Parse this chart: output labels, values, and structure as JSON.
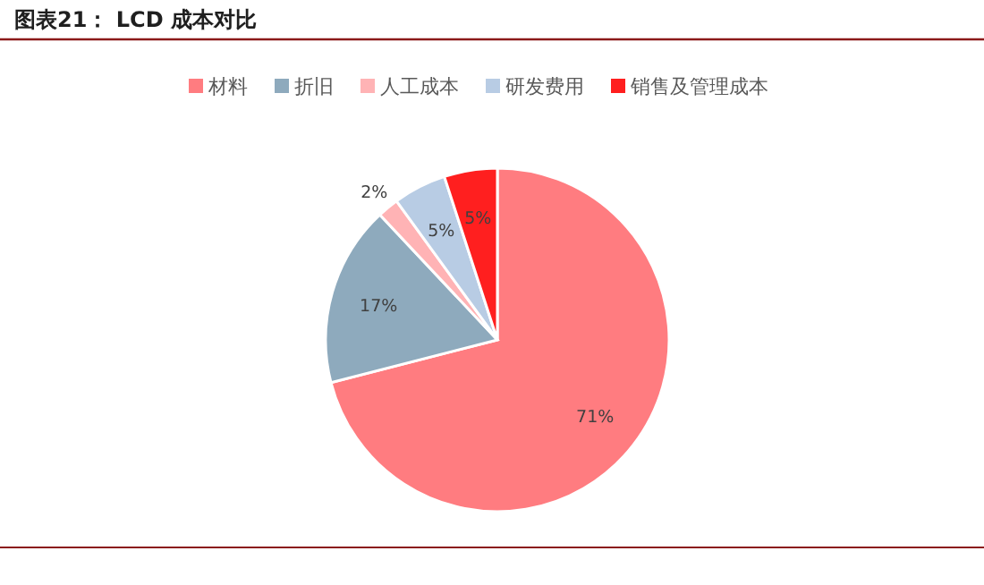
{
  "chart_data": {
    "type": "pie",
    "title": "图表21： LCD 成本对比",
    "categories": [
      "材料",
      "折旧",
      "人工成本",
      "研发费用",
      "销售及管理成本"
    ],
    "values": [
      71,
      17,
      2,
      5,
      5
    ],
    "value_labels": [
      "71%",
      "17%",
      "2%",
      "5%",
      "5%"
    ],
    "colors": [
      "#ff7c80",
      "#8eaabd",
      "#ffb3b5",
      "#b8cce4",
      "#ff1f1f"
    ],
    "legend": "top"
  }
}
